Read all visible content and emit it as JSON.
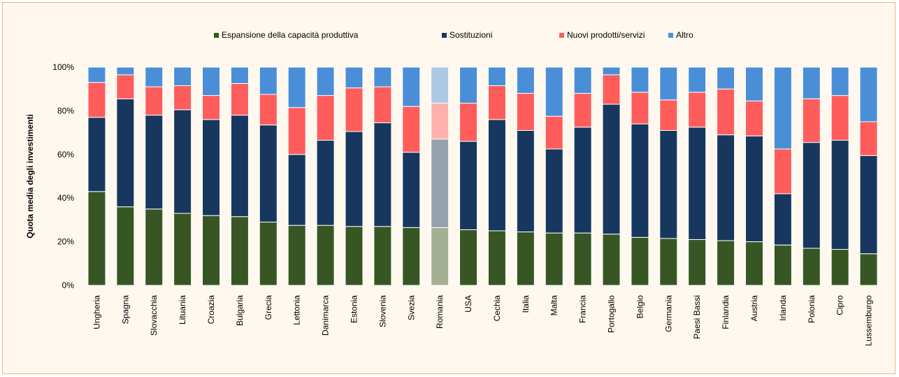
{
  "chart_data": {
    "type": "bar",
    "stacked": true,
    "normalized": true,
    "ylabel": "Quota media degli investimenti",
    "xlabel": "",
    "ylim": [
      0,
      100
    ],
    "yticks": [
      "0%",
      "20%",
      "40%",
      "60%",
      "80%",
      "100%"
    ],
    "legend_position": "top",
    "highlighted_category": "Romania",
    "categories": [
      "Ungheria",
      "Spagna",
      "Slovacchia",
      "Lituania",
      "Croazia",
      "Bulgaria",
      "Grecia",
      "Lettonia",
      "Danimarca",
      "Estonia",
      "Slovenia",
      "Svezia",
      "Romania",
      "USA",
      "Cechia",
      "Italia",
      "Malta",
      "Francia",
      "Portogallo",
      "Belgio",
      "Germania",
      "Paesi Bassi",
      "Finlandia",
      "Austria",
      "Irlanda",
      "Polonia",
      "Cipro",
      "Lussemburgo"
    ],
    "series": [
      {
        "name": "Espansione della capacità produttiva",
        "color": "#375623",
        "values": [
          43,
          36,
          35,
          33,
          32,
          31.5,
          29,
          27.5,
          27.5,
          27,
          27,
          26.5,
          26.5,
          25.5,
          25,
          24.5,
          24,
          24,
          23.5,
          22,
          21.5,
          21,
          20.5,
          20,
          18.5,
          17,
          16.5,
          14.5
        ]
      },
      {
        "name": "Sostituzioni",
        "color": "#17375e",
        "values": [
          34,
          49.5,
          43,
          47.5,
          44,
          46.5,
          44.5,
          32.5,
          39,
          43.5,
          47.5,
          34.5,
          40.5,
          40.5,
          51,
          46.5,
          38.5,
          48.5,
          59.5,
          52,
          49.5,
          51.5,
          48.5,
          48.5,
          23.5,
          48.5,
          50,
          45
        ]
      },
      {
        "name": "Nuovi prodotti/servizi",
        "color": "#ff5c5c",
        "values": [
          16,
          11,
          13,
          11,
          11,
          14.5,
          14,
          21.5,
          20.5,
          20,
          16.5,
          21,
          16.5,
          17.5,
          15.5,
          17,
          15,
          15.5,
          13.5,
          14.5,
          14,
          16,
          21,
          16,
          20.5,
          20,
          20.5,
          15.5
        ]
      },
      {
        "name": "Altro",
        "color": "#4a8ed8",
        "values": [
          7,
          3.5,
          9,
          8.5,
          13,
          7.5,
          12.5,
          18.5,
          13,
          9.5,
          9,
          18,
          16.5,
          16.5,
          8.5,
          12,
          22.5,
          12,
          3.5,
          11.5,
          15,
          11.5,
          10,
          15.5,
          37.5,
          14.5,
          13,
          25
        ]
      }
    ]
  }
}
